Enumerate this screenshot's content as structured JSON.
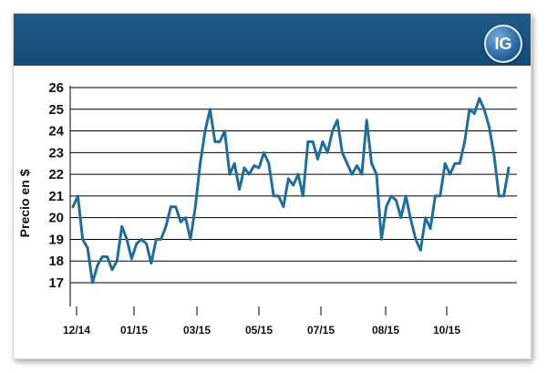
{
  "header": {
    "logo_text": "IG"
  },
  "colors": {
    "header": "#1e5a8a",
    "line": "#1f6e99",
    "grid": "#000000"
  },
  "chart_data": {
    "type": "line",
    "title": "",
    "ylabel": "Precio en $",
    "xlabel": "",
    "ylim": [
      16,
      26
    ],
    "y_ticks": [
      17,
      18,
      19,
      20,
      21,
      22,
      23,
      24,
      25,
      26
    ],
    "x_ticks": [
      "12/14",
      "01/15",
      "03/15",
      "05/15",
      "07/15",
      "08/15",
      "10/15"
    ],
    "grid": true,
    "series": [
      {
        "values": [
          20.5,
          21.0,
          19.0,
          18.6,
          17.0,
          17.8,
          18.2,
          18.2,
          17.6,
          18.0,
          19.6,
          19.0,
          18.1,
          18.8,
          19.0,
          18.8,
          17.9,
          19.0,
          19.0,
          19.6,
          20.5,
          20.5,
          19.8,
          20.0,
          19.0,
          20.5,
          22.5,
          24.0,
          25.0,
          23.5,
          23.5,
          24.0,
          22.0,
          22.5,
          21.3,
          22.3,
          22.0,
          22.4,
          22.3,
          23.0,
          22.5,
          21.0,
          21.0,
          20.5,
          21.8,
          21.5,
          22.0,
          21.0,
          23.5,
          23.5,
          22.7,
          23.5,
          23.0,
          24.0,
          24.5,
          23.0,
          22.5,
          22.0,
          22.4,
          22.0,
          24.5,
          22.5,
          22.0,
          19.0,
          20.5,
          21.0,
          20.8,
          20.0,
          21.0,
          19.9,
          19.0,
          18.5,
          20.0,
          19.5,
          21.0,
          21.0,
          22.5,
          22.0,
          22.5,
          22.5,
          23.5,
          25.0,
          24.8,
          25.5,
          25.0,
          24.2,
          22.9,
          21.0,
          21.0,
          22.3
        ]
      }
    ]
  }
}
